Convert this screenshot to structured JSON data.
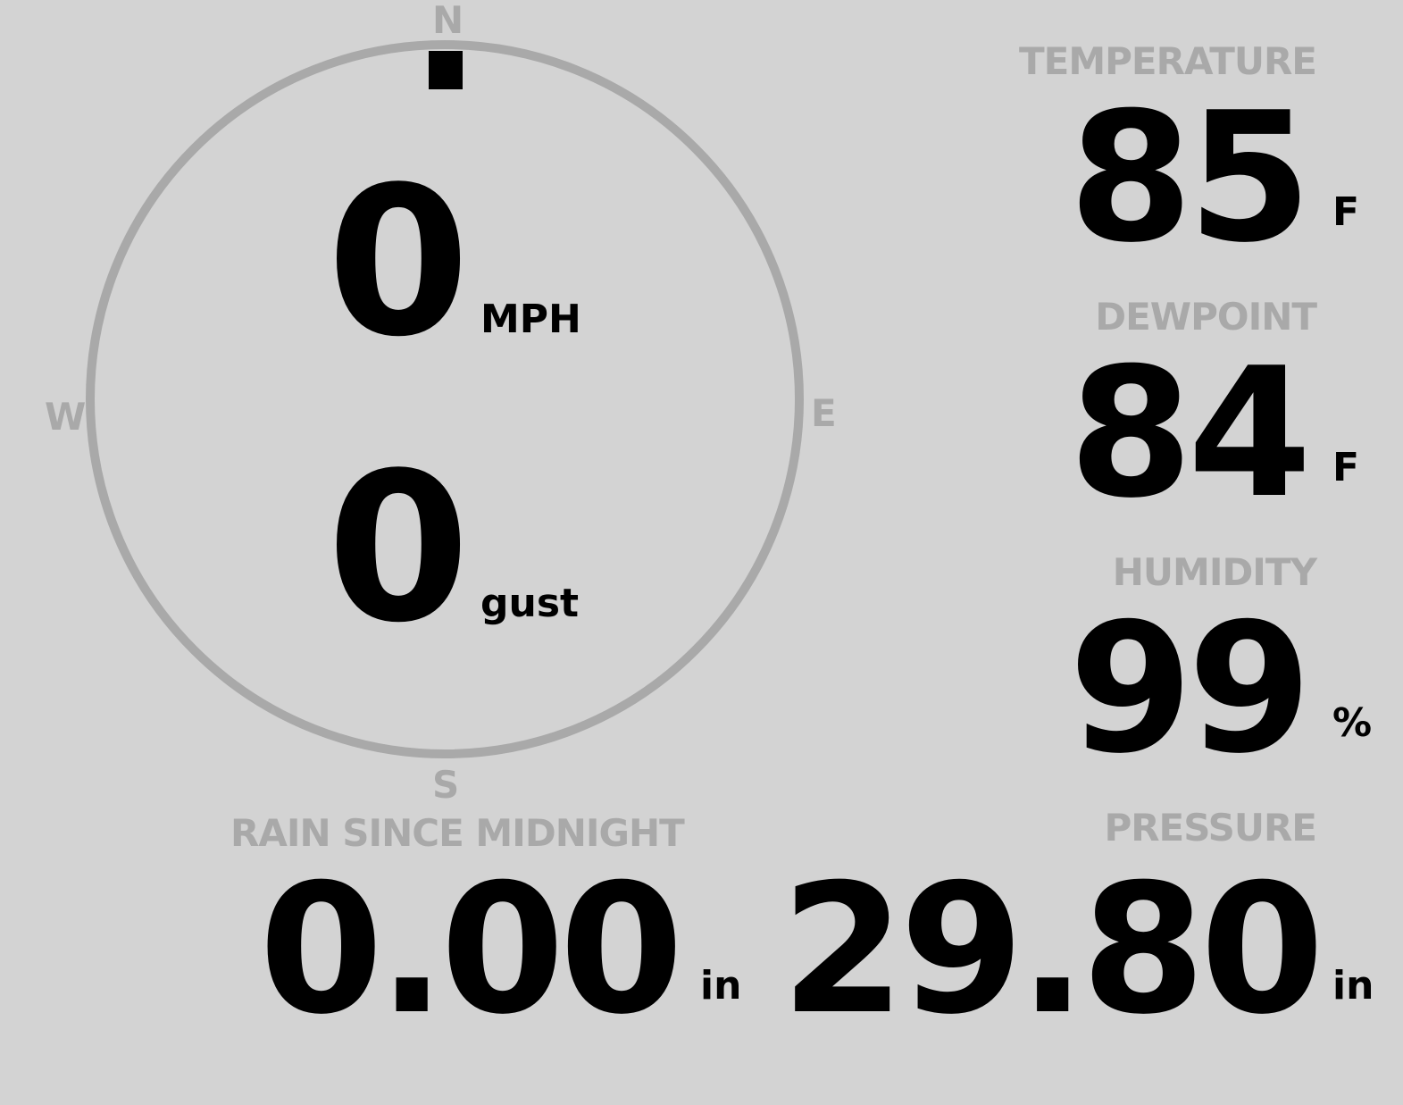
{
  "wind": {
    "speed": "0",
    "speed_unit": "MPH",
    "gust": "0",
    "gust_label": "gust",
    "direction_deg": 0,
    "compass": {
      "n": "N",
      "e": "E",
      "s": "S",
      "w": "W"
    }
  },
  "temperature": {
    "label": "TEMPERATURE",
    "value": "85",
    "unit": "F"
  },
  "dewpoint": {
    "label": "DEWPOINT",
    "value": "84",
    "unit": "F"
  },
  "humidity": {
    "label": "HUMIDITY",
    "value": "99",
    "unit": "%"
  },
  "rain": {
    "label": "RAIN SINCE MIDNIGHT",
    "value": "0.00",
    "unit": "in"
  },
  "pressure": {
    "label": "PRESSURE",
    "value": "29.80",
    "unit": "in"
  },
  "colors": {
    "background": "#d3d3d3",
    "muted": "#a9a9a9",
    "value": "#000000"
  }
}
